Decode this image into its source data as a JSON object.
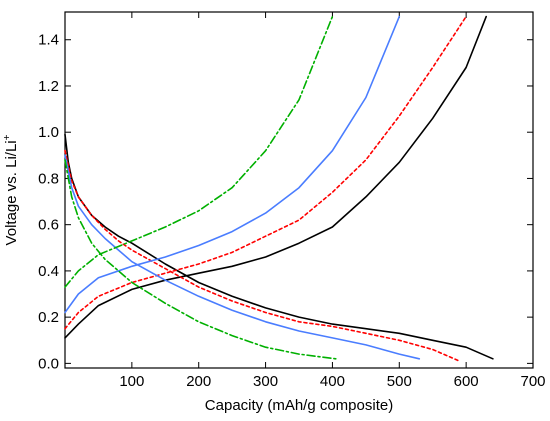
{
  "chart_data": {
    "type": "line",
    "xlabel": "Capacity (mAh/g composite)",
    "ylabel": {
      "main": "Voltage vs. Li/Li",
      "sup": "+"
    },
    "xlim": [
      0,
      700
    ],
    "ylim": [
      -0.02,
      1.52
    ],
    "x_ticks": [
      100,
      200,
      300,
      400,
      500,
      600,
      700
    ],
    "y_ticks": [
      0.0,
      0.2,
      0.4,
      0.6,
      0.8,
      1.0,
      1.2,
      1.4
    ],
    "x_tick_labels": [
      "100",
      "200",
      "300",
      "400",
      "500",
      "600",
      "700"
    ],
    "y_tick_labels": [
      "0.0",
      "0.2",
      "0.4",
      "0.6",
      "0.8",
      "1.0",
      "1.2",
      "1.4"
    ],
    "grid": false,
    "legend": "none",
    "series": [
      {
        "color": "#000000",
        "dash": "solid",
        "discharge": {
          "x": [
            0,
            5,
            10,
            20,
            40,
            60,
            80,
            100,
            150,
            200,
            250,
            300,
            350,
            400,
            450,
            500,
            550,
            600,
            640
          ],
          "y": [
            0.99,
            0.87,
            0.8,
            0.72,
            0.64,
            0.59,
            0.55,
            0.52,
            0.43,
            0.35,
            0.29,
            0.24,
            0.2,
            0.17,
            0.15,
            0.13,
            0.1,
            0.07,
            0.02
          ]
        },
        "charge": {
          "x": [
            0,
            20,
            50,
            100,
            150,
            200,
            250,
            300,
            350,
            400,
            450,
            500,
            550,
            600,
            630
          ],
          "y": [
            0.11,
            0.17,
            0.25,
            0.32,
            0.36,
            0.39,
            0.42,
            0.46,
            0.52,
            0.59,
            0.72,
            0.87,
            1.06,
            1.28,
            1.5
          ]
        }
      },
      {
        "color": "#ff0000",
        "dash": "dotted",
        "discharge": {
          "x": [
            0,
            10,
            20,
            40,
            60,
            80,
            100,
            150,
            200,
            250,
            300,
            350,
            400,
            450,
            500,
            550,
            590
          ],
          "y": [
            0.92,
            0.79,
            0.72,
            0.64,
            0.58,
            0.53,
            0.49,
            0.41,
            0.33,
            0.27,
            0.22,
            0.18,
            0.16,
            0.13,
            0.1,
            0.06,
            0.01
          ]
        },
        "charge": {
          "x": [
            0,
            20,
            50,
            100,
            150,
            200,
            250,
            300,
            350,
            400,
            450,
            500,
            550,
            600
          ],
          "y": [
            0.15,
            0.22,
            0.29,
            0.35,
            0.39,
            0.43,
            0.48,
            0.55,
            0.62,
            0.74,
            0.88,
            1.07,
            1.28,
            1.5
          ]
        }
      },
      {
        "color": "#4a7dff",
        "dash": "solid",
        "discharge": {
          "x": [
            0,
            10,
            20,
            40,
            60,
            80,
            100,
            150,
            200,
            250,
            300,
            350,
            400,
            450,
            500,
            530
          ],
          "y": [
            0.9,
            0.76,
            0.68,
            0.6,
            0.54,
            0.49,
            0.44,
            0.36,
            0.29,
            0.23,
            0.18,
            0.14,
            0.11,
            0.08,
            0.04,
            0.02
          ]
        },
        "charge": {
          "x": [
            0,
            20,
            50,
            100,
            150,
            200,
            250,
            300,
            350,
            400,
            450,
            500
          ],
          "y": [
            0.22,
            0.3,
            0.37,
            0.42,
            0.46,
            0.51,
            0.57,
            0.65,
            0.76,
            0.92,
            1.15,
            1.5
          ]
        }
      },
      {
        "color": "#00b000",
        "dash": "dashdot",
        "discharge": {
          "x": [
            0,
            10,
            20,
            40,
            60,
            80,
            100,
            150,
            200,
            250,
            300,
            350,
            405
          ],
          "y": [
            0.88,
            0.72,
            0.63,
            0.52,
            0.45,
            0.4,
            0.35,
            0.26,
            0.18,
            0.12,
            0.07,
            0.04,
            0.02
          ]
        },
        "charge": {
          "x": [
            0,
            20,
            50,
            100,
            150,
            200,
            250,
            300,
            350,
            400
          ],
          "y": [
            0.33,
            0.4,
            0.47,
            0.53,
            0.59,
            0.66,
            0.76,
            0.92,
            1.14,
            1.5
          ]
        }
      }
    ]
  }
}
